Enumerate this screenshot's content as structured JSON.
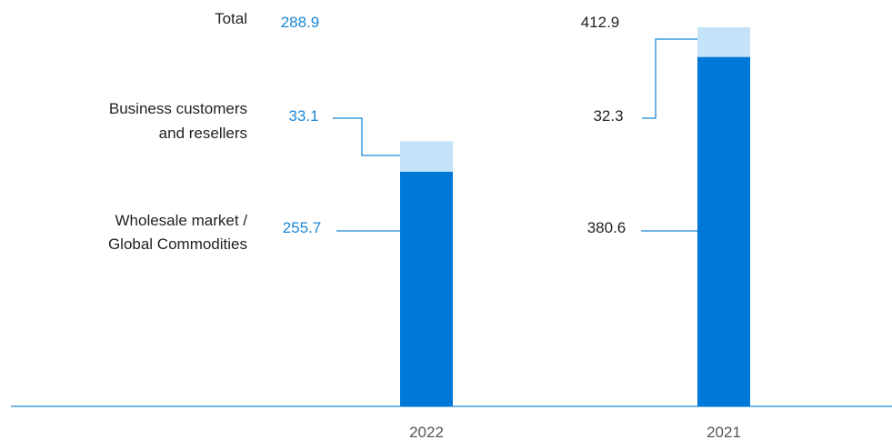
{
  "chart_data": {
    "type": "bar",
    "stacked": true,
    "categories": [
      "2022",
      "2021"
    ],
    "series": [
      {
        "name": "Wholesale market / Global Commodities",
        "values": [
          255.7,
          380.6
        ],
        "color": "#0078d7"
      },
      {
        "name": "Business customers and resellers",
        "values": [
          33.1,
          32.3
        ],
        "color": "#c4e3f9"
      }
    ],
    "totals": [
      288.9,
      412.9
    ],
    "total_label": "Total",
    "legend": [
      {
        "lines": [
          "Total"
        ]
      },
      {
        "lines": [
          "Business customers",
          "and resellers"
        ]
      },
      {
        "lines": [
          "Wholesale market /",
          "Global Commodities"
        ]
      }
    ],
    "highlight_color": "#1a87d6",
    "text_color": "#222222",
    "axis_color": "#1a87d6",
    "ylim": [
      0,
      412.9
    ]
  }
}
